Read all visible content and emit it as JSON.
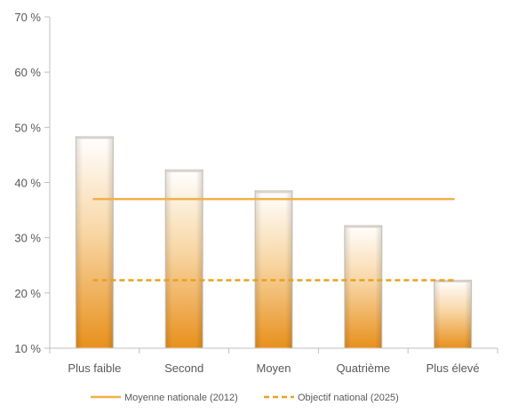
{
  "chart_data": {
    "type": "bar",
    "title": "",
    "xlabel": "",
    "ylabel": "",
    "categories": [
      "Plus faible",
      "Second",
      "Moyen",
      "Quatrième",
      "Plus élevé"
    ],
    "values": [
      48.3,
      42.3,
      38.5,
      32.2,
      22.3
    ],
    "ylim": [
      10,
      70
    ],
    "yticks": [
      10,
      20,
      30,
      40,
      50,
      60,
      70
    ],
    "ytick_labels": [
      "10 %",
      "20 %",
      "30 %",
      "40 %",
      "50 %",
      "60 %",
      "70 %"
    ],
    "grid": false,
    "reference_lines": [
      {
        "name": "Moyenne nationale (2012)",
        "value": 37.0,
        "style": "solid"
      },
      {
        "name": "Objectif national (2025)",
        "value": 22.3,
        "style": "dashed"
      }
    ],
    "legend": {
      "placement": "bottom",
      "entries": [
        "Moyenne nationale (2012)",
        "Objectif national (2025)"
      ]
    },
    "colors": {
      "bar_top": "#ffffff",
      "bar_bottom": "#e8901c",
      "bar_border": "#d8d0c8",
      "solid_line": "#f0b048",
      "dashed_line": "#e8a11e",
      "axis": "#bfbfbf",
      "text": "#595959"
    }
  }
}
